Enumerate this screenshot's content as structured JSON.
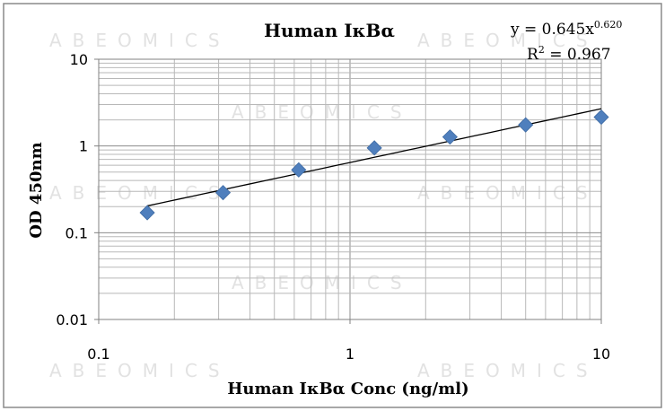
{
  "watermark": "ABEOMICS",
  "chart_data": {
    "type": "scatter",
    "title": "Human IκBα",
    "xlabel": "Human IκBα Conc (ng/ml)",
    "ylabel": "OD 450nm",
    "x_scale": "log",
    "y_scale": "log",
    "xlim": [
      0.1,
      10
    ],
    "ylim": [
      0.01,
      10
    ],
    "x_ticks": [
      "0.1",
      "1",
      "10"
    ],
    "y_ticks": [
      "0.01",
      "0.1",
      "1",
      "10"
    ],
    "grid": true,
    "legend": "none",
    "marker": "diamond",
    "marker_color": "#4f7fbd",
    "series": [
      {
        "x": [
          0.156,
          0.3125,
          0.625,
          1.25,
          2.5,
          5,
          10
        ],
        "y": [
          0.17,
          0.29,
          0.53,
          0.95,
          1.27,
          1.75,
          2.15
        ]
      }
    ],
    "trendline": {
      "type": "power",
      "coefficient": 0.645,
      "exponent": 0.62,
      "color": "#000000",
      "equation_text": "y = 0.645x",
      "equation_exponent": "0.620",
      "r2_text_prefix": "R",
      "r2_superscript": "2",
      "r2_text_suffix": " = 0.967"
    }
  }
}
